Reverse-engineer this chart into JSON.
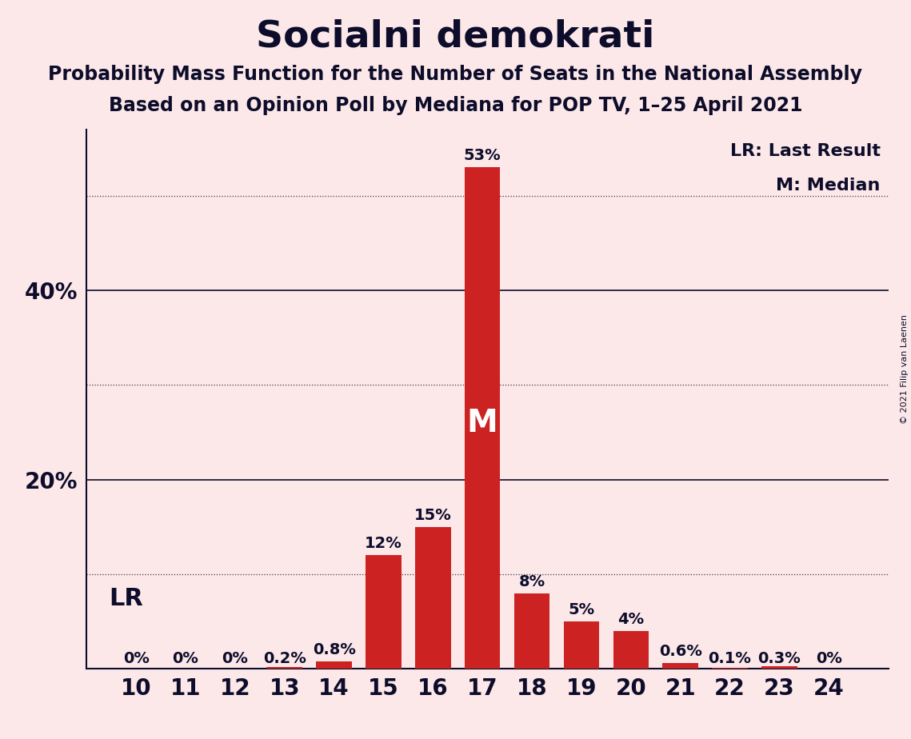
{
  "title": "Socialni demokrati",
  "subtitle1": "Probability Mass Function for the Number of Seats in the National Assembly",
  "subtitle2": "Based on an Opinion Poll by Mediana for POP TV, 1–25 April 2021",
  "copyright": "© 2021 Filip van Laenen",
  "seats": [
    10,
    11,
    12,
    13,
    14,
    15,
    16,
    17,
    18,
    19,
    20,
    21,
    22,
    23,
    24
  ],
  "probabilities": [
    0.0,
    0.0,
    0.0,
    0.2,
    0.8,
    12.0,
    15.0,
    53.0,
    8.0,
    5.0,
    4.0,
    0.6,
    0.1,
    0.3,
    0.0
  ],
  "bar_color": "#cc2222",
  "background_color": "#fce8e8",
  "text_color": "#0d0d2b",
  "median_seat": 17,
  "lr_label": "LR",
  "legend_lr": "LR: Last Result",
  "legend_m": "M: Median",
  "ylim": [
    0,
    57
  ],
  "solid_yticks": [
    20,
    40
  ],
  "dotted_yticks": [
    10,
    30,
    50
  ],
  "title_fontsize": 34,
  "subtitle_fontsize": 17,
  "bar_label_fontsize": 14,
  "axis_tick_fontsize": 20,
  "legend_fontsize": 16,
  "lr_fontsize": 22,
  "m_fontsize": 28,
  "copyright_fontsize": 8
}
